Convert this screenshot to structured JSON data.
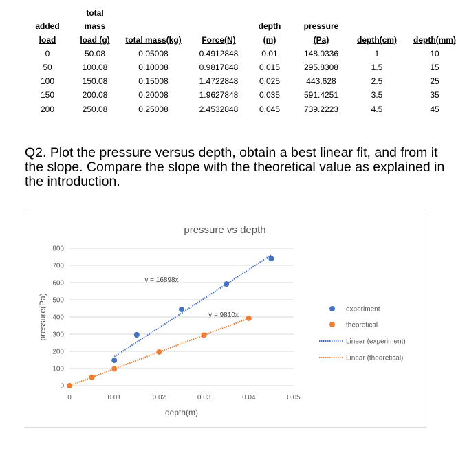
{
  "table": {
    "headers": {
      "added_load": [
        "added",
        "load"
      ],
      "total_mass_load": [
        "total",
        "mass",
        "load (g)"
      ],
      "total_mass_kg": "total mass(kg)",
      "force": "Force(N)",
      "depth_m": [
        "depth",
        "(m)"
      ],
      "pressure": [
        "pressure",
        "(Pa)"
      ],
      "depth_cm": "depth(cm)",
      "depth_mm": "depth(mm)"
    },
    "rows": [
      [
        "0",
        "50.08",
        "0.05008",
        "0.4912848",
        "0.01",
        "148.0336",
        "1",
        "10"
      ],
      [
        "50",
        "100.08",
        "0.10008",
        "0.9817848",
        "0.015",
        "295.8308",
        "1.5",
        "15"
      ],
      [
        "100",
        "150.08",
        "0.15008",
        "1.4722848",
        "0.025",
        "443.628",
        "2.5",
        "25"
      ],
      [
        "150",
        "200.08",
        "0.20008",
        "1.9627848",
        "0.035",
        "591.4251",
        "3.5",
        "35"
      ],
      [
        "200",
        "250.08",
        "0.25008",
        "2.4532848",
        "0.045",
        "739.2223",
        "4.5",
        "45"
      ]
    ]
  },
  "question": {
    "text": "Q2. Plot the pressure versus depth, obtain a best linear fit, and from it the slope. Compare the slope with the theoretical value as explained in the introduction."
  },
  "chart_data": {
    "type": "scatter",
    "title": "pressure vs depth",
    "xlabel": "depth(m)",
    "ylabel": "pressure(Pa)",
    "xlim": [
      0,
      0.05
    ],
    "ylim": [
      0,
      800
    ],
    "xticks": [
      "0",
      "0.01",
      "0.02",
      "0.03",
      "0.04",
      "0.05"
    ],
    "yticks": [
      "0",
      "100",
      "200",
      "300",
      "400",
      "500",
      "600",
      "700",
      "800"
    ],
    "grid": true,
    "legend_position": "right",
    "series": [
      {
        "name": "experiment",
        "color": "#4472c4",
        "x": [
          0.01,
          0.015,
          0.025,
          0.035,
          0.045
        ],
        "y": [
          148.0336,
          295.8308,
          443.628,
          591.4251,
          739.2223
        ]
      },
      {
        "name": "theoretical",
        "color": "#ed7d31",
        "x": [
          0,
          0.005,
          0.01,
          0.02,
          0.03,
          0.04
        ],
        "y": [
          0,
          49.05,
          98.1,
          196.2,
          294.3,
          392.4
        ]
      }
    ],
    "trendlines": [
      {
        "name": "Linear (experiment)",
        "color": "#4472c4",
        "slope": 16898,
        "x_range": [
          0.01,
          0.045
        ],
        "equation": "y = 16898x"
      },
      {
        "name": "Linear (theoretical)",
        "color": "#ed7d31",
        "slope": 9810,
        "x_range": [
          0,
          0.04
        ],
        "equation": "y = 9810x"
      }
    ]
  }
}
